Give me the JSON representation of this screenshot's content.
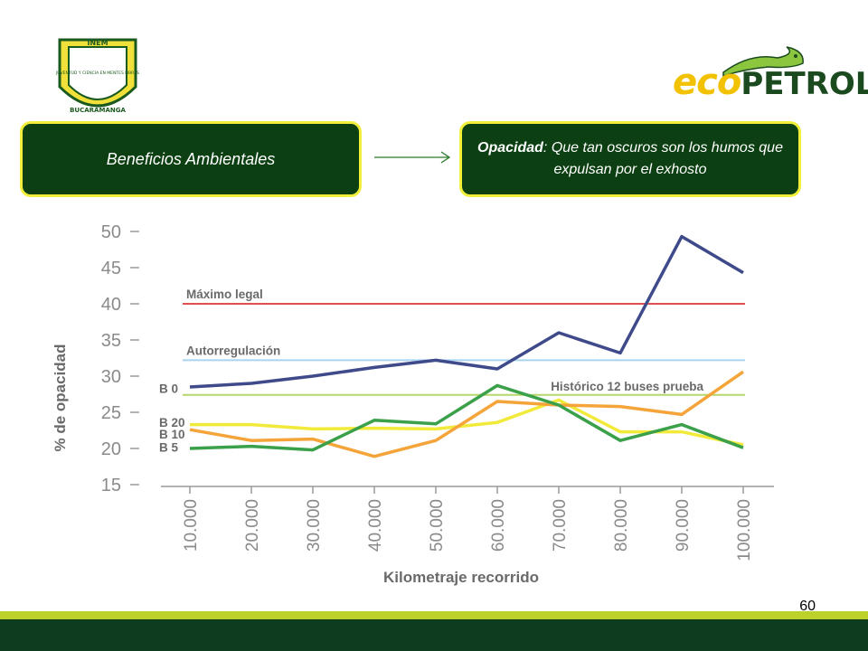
{
  "logos": {
    "inem": {
      "top_text": "INEM",
      "inner_text": "JUVENTUD Y CIENCIA EN MENTES LIBRES",
      "bottom_text": "BUCARAMANGA"
    },
    "ecopetrol": {
      "eco": "eco",
      "petrol": "PETROL"
    }
  },
  "boxes": {
    "left": "Beneficios Ambientales",
    "right_term": "Opacidad",
    "right_definition": ":  Que tan oscuros son los humos que expulsan por el exhosto"
  },
  "page_number": "60",
  "colors": {
    "box_bg": "#0c3f12",
    "box_border": "#f2ee3c",
    "band_light": "#bcd22a",
    "band_dark": "#0d3d1e",
    "b0": "#3e4a8a",
    "b5": "#3aa04a",
    "b10": "#f5a43a",
    "b20": "#f2ea3a",
    "maximo": "#e05050",
    "autorreg": "#a8d4f0",
    "historico": "#b6d86a"
  },
  "chart_data": {
    "type": "line",
    "xlabel": "Kilometraje recorrido",
    "ylabel": "% de opacidad",
    "ylim": [
      15,
      50
    ],
    "yticks": [
      50,
      45,
      40,
      35,
      30,
      25,
      20,
      15
    ],
    "categories": [
      "10.000",
      "20.000",
      "30.000",
      "40.000",
      "50.000",
      "60.000",
      "70.000",
      "80.000",
      "90.000",
      "100.000"
    ],
    "series": [
      {
        "name": "B 0",
        "values": [
          28.5,
          29,
          30,
          31.2,
          32.2,
          31,
          36,
          33.2,
          49.3,
          44.3
        ]
      },
      {
        "name": "B 20",
        "values": [
          23.3,
          23.3,
          22.7,
          22.8,
          22.7,
          23.6,
          26.7,
          22.3,
          22.3,
          20.5
        ]
      },
      {
        "name": "B 10",
        "values": [
          22.6,
          21.1,
          21.3,
          18.9,
          21.1,
          26.5,
          26.0,
          25.8,
          24.7,
          30.6
        ]
      },
      {
        "name": "B 5",
        "values": [
          20.0,
          20.3,
          19.8,
          23.9,
          23.4,
          28.7,
          26.0,
          21.1,
          23.3,
          20.1
        ]
      }
    ],
    "reference_lines": [
      {
        "name": "Máximo legal",
        "value": 40
      },
      {
        "name": "Autorregulación",
        "value": 32.2
      },
      {
        "name": "Histórico 12 buses prueba",
        "value": 27.4
      }
    ]
  }
}
